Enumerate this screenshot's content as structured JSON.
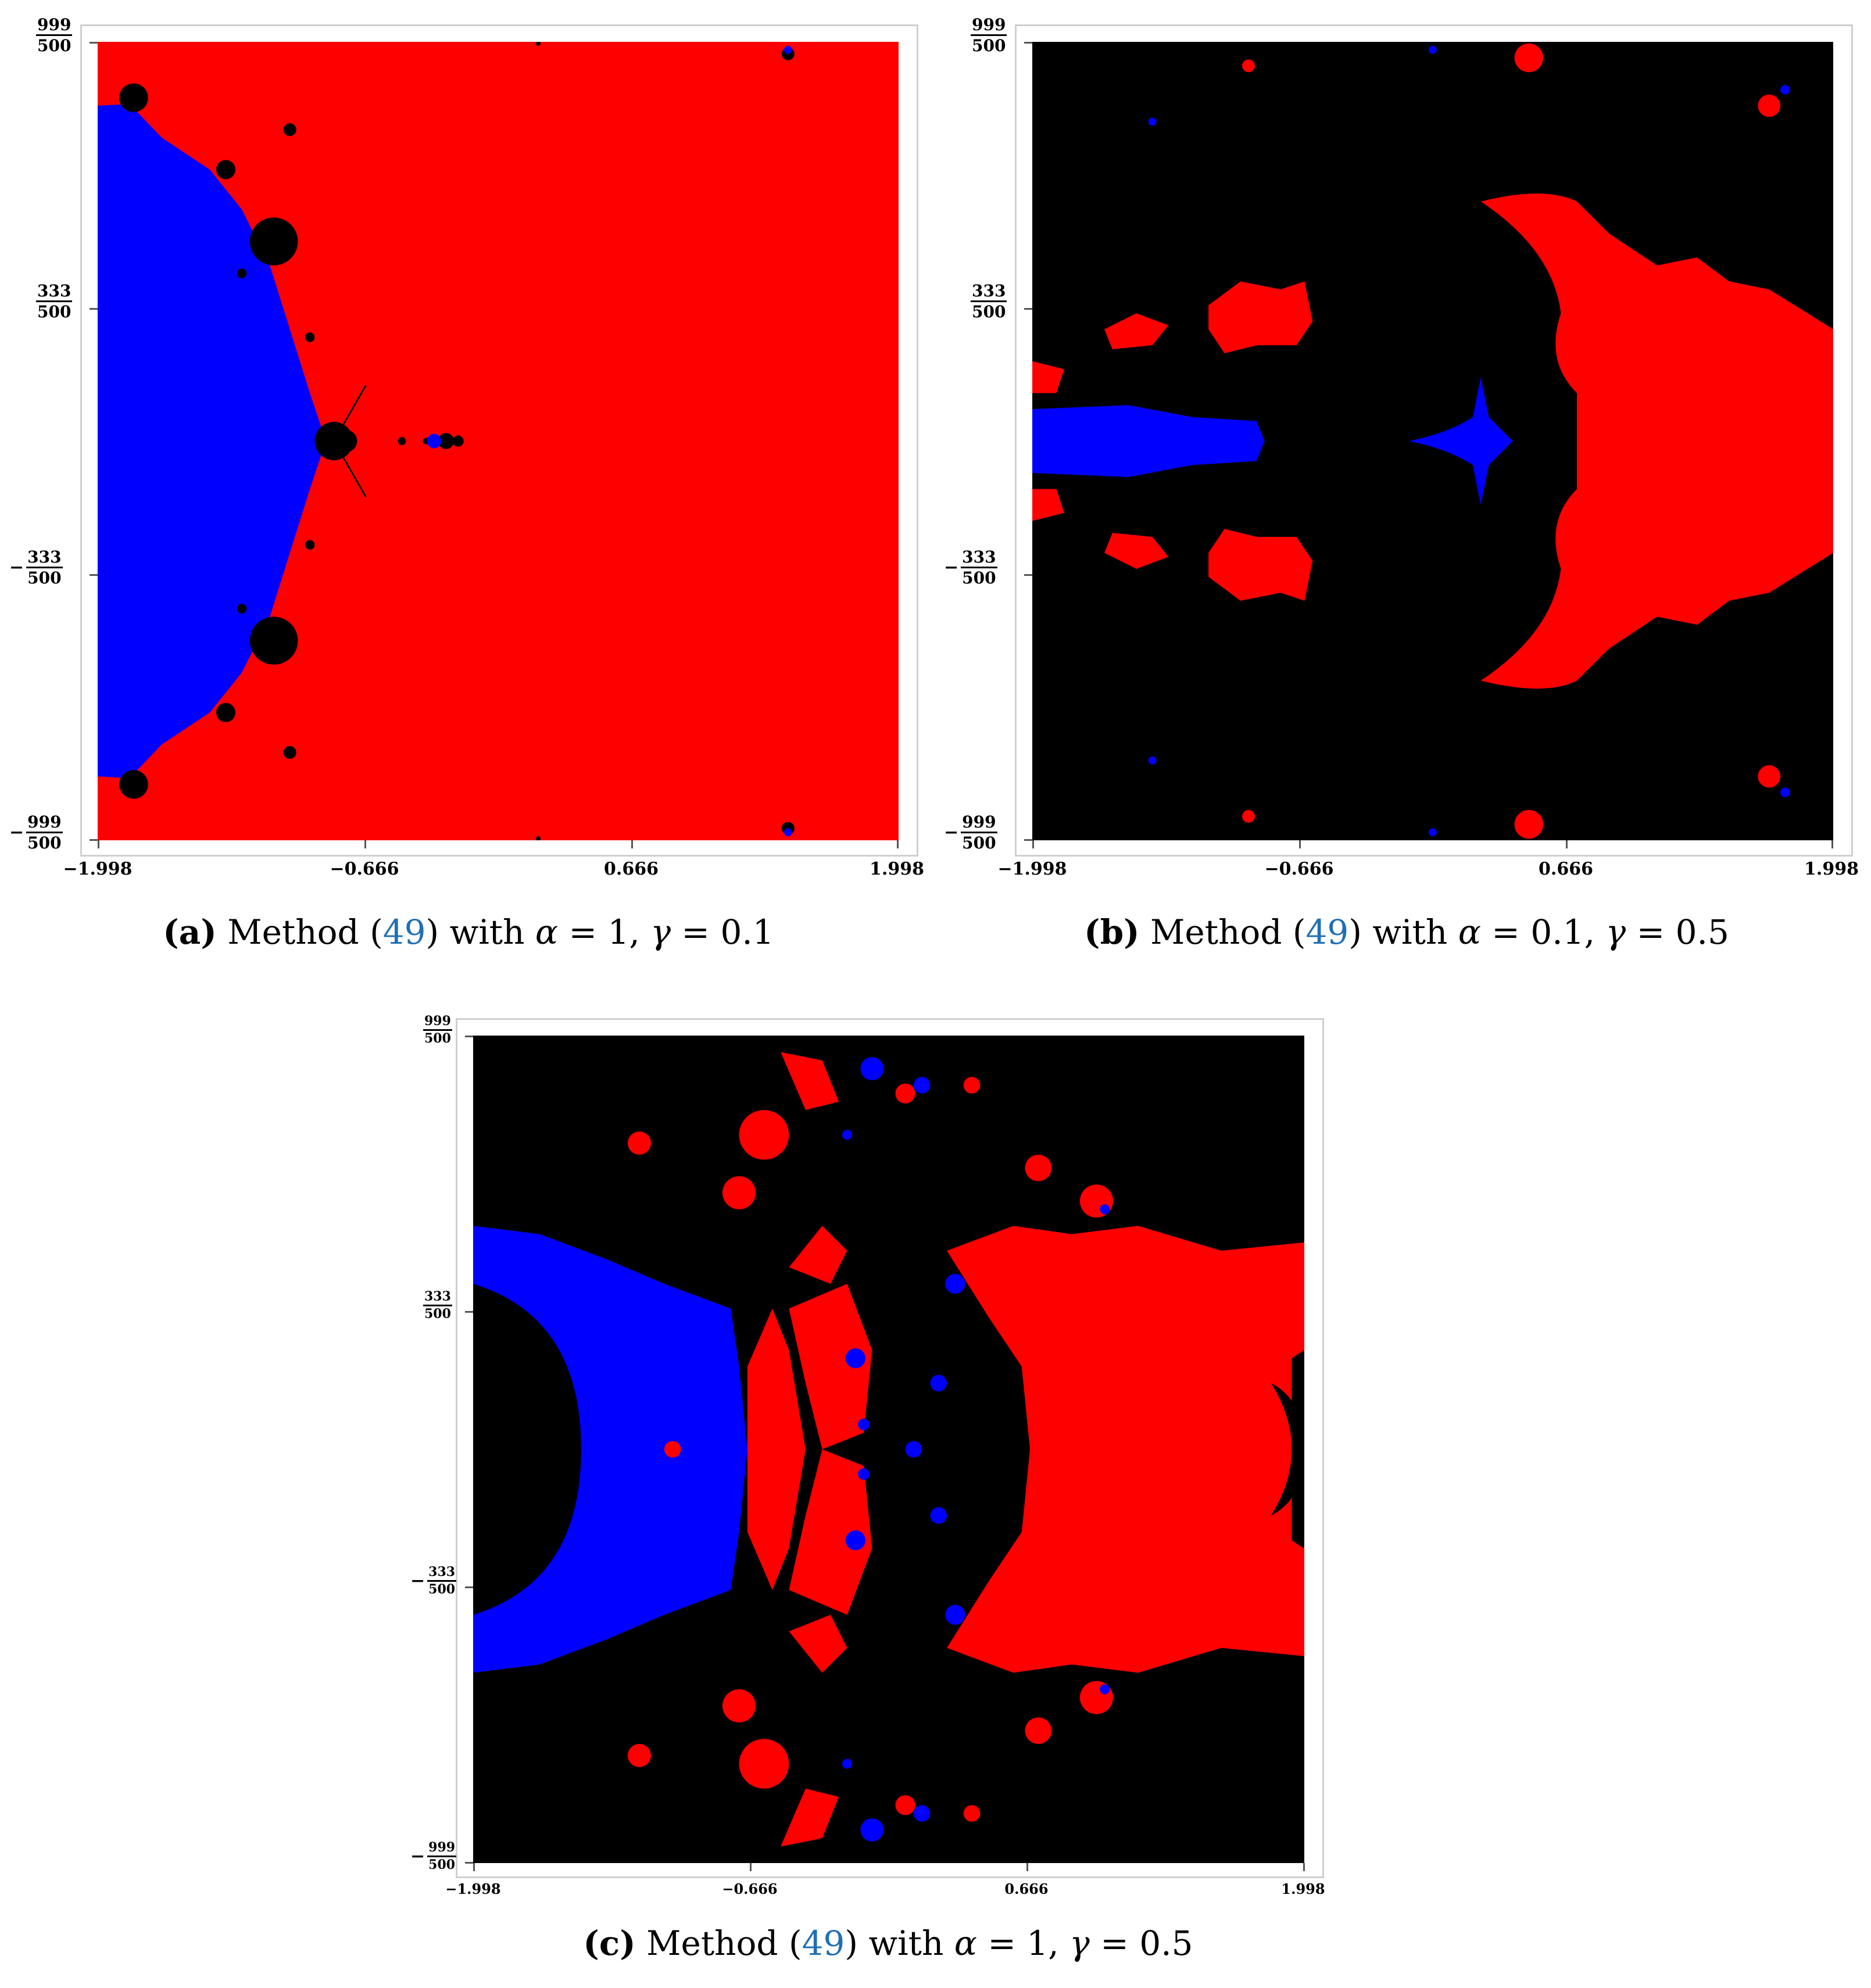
{
  "colors": {
    "red": "#ff0000",
    "blue": "#0000ff",
    "black": "#000000",
    "ref": "#1f6fb5"
  },
  "axes": {
    "x_ticks": [
      "−1.998",
      "−0.666",
      "0.666",
      "1.998"
    ],
    "y_ticks": [
      {
        "sign": "",
        "num": "999",
        "den": "500"
      },
      {
        "sign": "",
        "num": "333",
        "den": "500"
      },
      {
        "sign": "−",
        "num": "333",
        "den": "500"
      },
      {
        "sign": "−",
        "num": "999",
        "den": "500"
      }
    ]
  },
  "figures": [
    {
      "id": "a",
      "caption": {
        "open": "(",
        "letter": "a",
        "close": ")",
        "pre": " Method (",
        "ref": "49",
        "post": ") with ",
        "alpha_sym": "α",
        "alpha_eq": " = 1, ",
        "gamma_sym": "γ",
        "gamma_eq": " = 0.1"
      },
      "background": "red",
      "description_colors": [
        "red",
        "blue",
        "black"
      ]
    },
    {
      "id": "b",
      "caption": {
        "open": "(",
        "letter": "b",
        "close": ")",
        "pre": " Method (",
        "ref": "49",
        "post": ") with ",
        "alpha_sym": "α",
        "alpha_eq": " = 0.1, ",
        "gamma_sym": "γ",
        "gamma_eq": " = 0.5"
      },
      "background": "black",
      "description_colors": [
        "black",
        "red",
        "blue"
      ]
    },
    {
      "id": "c",
      "caption": {
        "open": "(",
        "letter": "c",
        "close": ")",
        "pre": " Method (",
        "ref": "49",
        "post": ") with ",
        "alpha_sym": "α",
        "alpha_eq": " = 1, ",
        "gamma_sym": "γ",
        "gamma_eq": " = 0.5"
      },
      "background": "black",
      "description_colors": [
        "black",
        "red",
        "blue"
      ]
    }
  ]
}
